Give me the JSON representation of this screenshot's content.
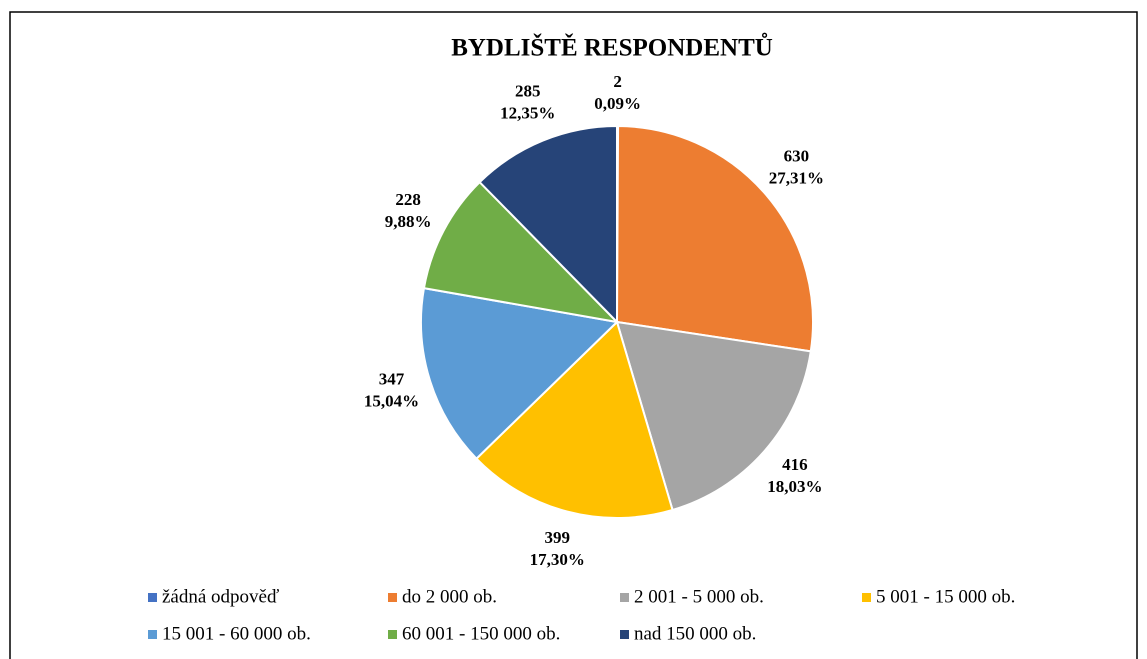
{
  "chart_data": {
    "type": "pie",
    "title": "BYDLIŠTĚ RESPONDENTŮ",
    "categories": [
      "žádná odpověď",
      "do 2 000 ob.",
      "2 001 - 5 000 ob.",
      "5 001 - 15 000 ob.",
      "15 001 - 60 000 ob.",
      "60 001 - 150 000 ob.",
      "nad 150 000 ob."
    ],
    "values": [
      2,
      630,
      416,
      399,
      347,
      228,
      285
    ],
    "percents": [
      0.09,
      27.31,
      18.03,
      17.3,
      15.04,
      9.88,
      12.35
    ],
    "percent_labels": [
      "0,09%",
      "27,31%",
      "18,03%",
      "17,30%",
      "15,04%",
      "9,88%",
      "12,35%"
    ],
    "colors": [
      "#4472c4",
      "#ed7d31",
      "#a5a5a5",
      "#ffc000",
      "#5b9bd5",
      "#70ad47",
      "#264478"
    ],
    "legend": "bottom"
  }
}
